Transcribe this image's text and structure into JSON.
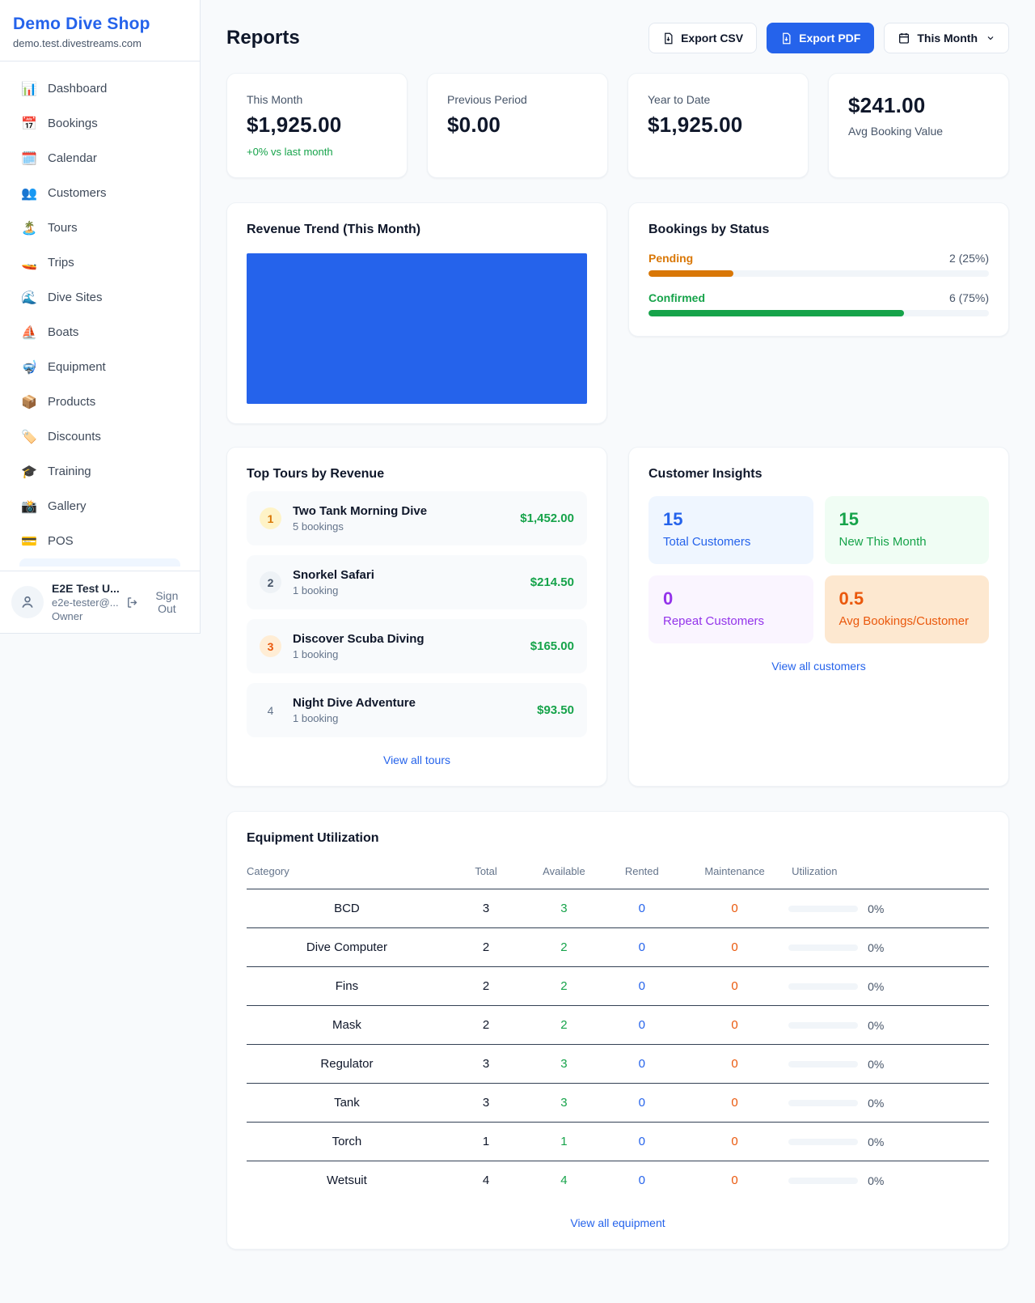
{
  "colors": {
    "primary": "#2563eb",
    "success": "#16a34a",
    "warning": "#d97706",
    "orange": "#ea580c",
    "purple": "#9333ea"
  },
  "app": {
    "name": "Demo Dive Shop",
    "domain": "demo.test.divestreams.com"
  },
  "sidebar": {
    "items": [
      {
        "icon": "📊",
        "label": "Dashboard"
      },
      {
        "icon": "📅",
        "label": "Bookings"
      },
      {
        "icon": "🗓️",
        "label": "Calendar"
      },
      {
        "icon": "👥",
        "label": "Customers"
      },
      {
        "icon": "🏝️",
        "label": "Tours"
      },
      {
        "icon": "🚤",
        "label": "Trips"
      },
      {
        "icon": "🌊",
        "label": "Dive Sites"
      },
      {
        "icon": "⛵",
        "label": "Boats"
      },
      {
        "icon": "🤿",
        "label": "Equipment"
      },
      {
        "icon": "📦",
        "label": "Products"
      },
      {
        "icon": "🏷️",
        "label": "Discounts"
      },
      {
        "icon": "🎓",
        "label": "Training"
      },
      {
        "icon": "📸",
        "label": "Gallery"
      },
      {
        "icon": "💳",
        "label": "POS"
      }
    ],
    "user": {
      "name": "E2E Test U...",
      "email": "e2e-tester@...",
      "role": "Owner",
      "signout_label": "Sign Out"
    }
  },
  "header": {
    "title": "Reports",
    "export_csv_label": "Export CSV",
    "export_pdf_label": "Export PDF",
    "period_label": "This Month"
  },
  "stats": [
    {
      "label": "This Month",
      "value": "$1,925.00",
      "delta": "+0% vs last month"
    },
    {
      "label": "Previous Period",
      "value": "$0.00"
    },
    {
      "label": "Year to Date",
      "value": "$1,925.00"
    },
    {
      "label": "Avg Booking Value",
      "value": "$241.00"
    }
  ],
  "revenue_trend": {
    "title": "Revenue Trend (This Month)",
    "fill_color": "#2563eb"
  },
  "bookings_by_status": {
    "title": "Bookings by Status",
    "rows": [
      {
        "label": "Pending",
        "value": "2 (25%)",
        "percent": 25,
        "color": "#d97706"
      },
      {
        "label": "Confirmed",
        "value": "6 (75%)",
        "percent": 75,
        "color": "#16a34a"
      }
    ]
  },
  "top_tours": {
    "title": "Top Tours by Revenue",
    "items": [
      {
        "rank": "1",
        "name": "Two Tank Morning Dive",
        "bookings": "5 bookings",
        "revenue": "$1,452.00"
      },
      {
        "rank": "2",
        "name": "Snorkel Safari",
        "bookings": "1 booking",
        "revenue": "$214.50"
      },
      {
        "rank": "3",
        "name": "Discover Scuba Diving",
        "bookings": "1 booking",
        "revenue": "$165.00"
      },
      {
        "rank": "4",
        "name": "Night Dive Adventure",
        "bookings": "1 booking",
        "revenue": "$93.50"
      }
    ],
    "link_label": "View all tours"
  },
  "customer_insights": {
    "title": "Customer Insights",
    "tiles": [
      {
        "value": "15",
        "label": "Total Customers"
      },
      {
        "value": "15",
        "label": "New This Month"
      },
      {
        "value": "0",
        "label": "Repeat Customers"
      },
      {
        "value": "0.5",
        "label": "Avg Bookings/Customer"
      }
    ],
    "link_label": "View all customers"
  },
  "equipment": {
    "title": "Equipment Utilization",
    "columns": [
      "Category",
      "Total",
      "Available",
      "Rented",
      "Maintenance",
      "Utilization"
    ],
    "rows": [
      {
        "category": "BCD",
        "total": "3",
        "available": "3",
        "rented": "0",
        "maintenance": "0",
        "utilization_percent": 0,
        "utilization_label": "0%"
      },
      {
        "category": "Dive Computer",
        "total": "2",
        "available": "2",
        "rented": "0",
        "maintenance": "0",
        "utilization_percent": 0,
        "utilization_label": "0%"
      },
      {
        "category": "Fins",
        "total": "2",
        "available": "2",
        "rented": "0",
        "maintenance": "0",
        "utilization_percent": 0,
        "utilization_label": "0%"
      },
      {
        "category": "Mask",
        "total": "2",
        "available": "2",
        "rented": "0",
        "maintenance": "0",
        "utilization_percent": 0,
        "utilization_label": "0%"
      },
      {
        "category": "Regulator",
        "total": "3",
        "available": "3",
        "rented": "0",
        "maintenance": "0",
        "utilization_percent": 0,
        "utilization_label": "0%"
      },
      {
        "category": "Tank",
        "total": "3",
        "available": "3",
        "rented": "0",
        "maintenance": "0",
        "utilization_percent": 0,
        "utilization_label": "0%"
      },
      {
        "category": "Torch",
        "total": "1",
        "available": "1",
        "rented": "0",
        "maintenance": "0",
        "utilization_percent": 0,
        "utilization_label": "0%"
      },
      {
        "category": "Wetsuit",
        "total": "4",
        "available": "4",
        "rented": "0",
        "maintenance": "0",
        "utilization_percent": 0,
        "utilization_label": "0%"
      }
    ],
    "link_label": "View all equipment"
  }
}
